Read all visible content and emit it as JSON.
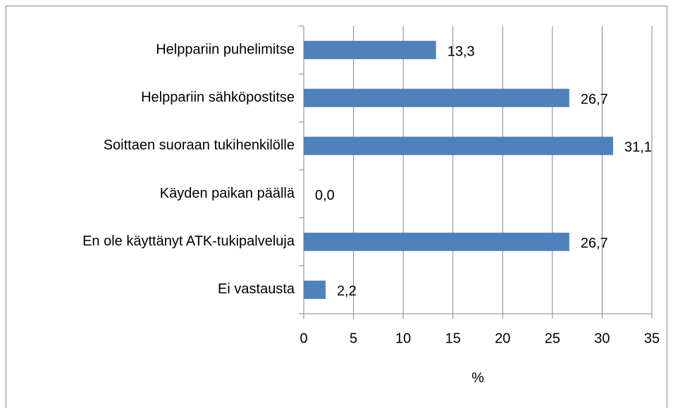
{
  "chart_data": {
    "type": "bar",
    "orientation": "horizontal",
    "categories": [
      "Helppariin puhelimitse",
      "Helppariin sähköpostitse",
      "Soittaen suoraan tukihenkilölle",
      "Käyden paikan päällä",
      "En ole käyttänyt ATK-tukipalveluja",
      "Ei vastausta"
    ],
    "values": [
      13.3,
      26.7,
      31.1,
      0.0,
      26.7,
      2.2
    ],
    "value_labels": [
      "13,3",
      "26,7",
      "31,1",
      "0,0",
      "26,7",
      "2,2"
    ],
    "color": "#4f81bd",
    "xlabel": "%",
    "xlim": [
      0,
      35
    ],
    "xticks": [
      0,
      5,
      10,
      15,
      20,
      25,
      30,
      35
    ],
    "grid": true
  }
}
